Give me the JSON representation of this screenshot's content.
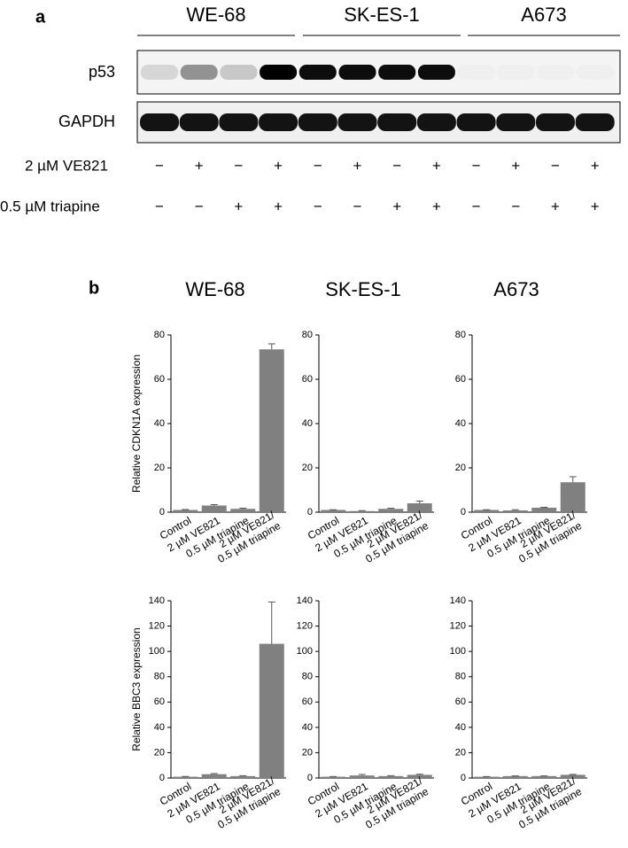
{
  "panel_a": {
    "label": "a",
    "cell_lines": [
      "WE-68",
      "SK-ES-1",
      "A673"
    ],
    "rows": [
      "p53",
      "GAPDH"
    ],
    "treatments": [
      {
        "label": "2 µM VE821",
        "signs": [
          "−",
          "+",
          "−",
          "+",
          "−",
          "+",
          "−",
          "+",
          "−",
          "+",
          "−",
          "+"
        ]
      },
      {
        "label": "0.5 µM triapine",
        "signs": [
          "−",
          "−",
          "+",
          "+",
          "−",
          "−",
          "+",
          "+",
          "−",
          "−",
          "+",
          "+"
        ]
      }
    ]
  },
  "panel_b": {
    "label": "b"
  },
  "chart_data": [
    {
      "type": "bar",
      "title": "WE-68",
      "ylabel": "Relative CDKN1A expression",
      "color": "#808080",
      "categories": [
        "Control",
        "2 µM VE821",
        "0.5 µM triapine",
        "2 µM VE821/\n0.5 µM triapine"
      ],
      "values": [
        1,
        3,
        1.5,
        73.5
      ],
      "errors": [
        0.2,
        0.4,
        0.3,
        2.5
      ],
      "ylim": [
        0,
        80
      ],
      "yticks": [
        0,
        20,
        40,
        60,
        80
      ]
    },
    {
      "type": "bar",
      "title": "SK-ES-1",
      "color": "#808080",
      "categories": [
        "Control",
        "2 µM VE821",
        "0.5 µM triapine",
        "2 µM VE821/\n0.5 µM triapine"
      ],
      "values": [
        1,
        0.5,
        1.5,
        4
      ],
      "errors": [
        0.1,
        0.2,
        0.3,
        1
      ],
      "ylim": [
        0,
        80
      ],
      "yticks": [
        0,
        20,
        40,
        60,
        80
      ]
    },
    {
      "type": "bar",
      "title": "A673",
      "color": "#808080",
      "categories": [
        "Control",
        "2 µM VE821",
        "0.5 µM triapine",
        "2 µM VE821/\n0.5 µM triapine"
      ],
      "values": [
        1,
        0.8,
        2,
        13.5
      ],
      "errors": [
        0.1,
        0.3,
        0.2,
        2.5
      ],
      "ylim": [
        0,
        80
      ],
      "yticks": [
        0,
        20,
        40,
        60,
        80
      ]
    },
    {
      "type": "bar",
      "ylabel": "Relative BBC3 expression",
      "color": "#808080",
      "categories": [
        "Control",
        "2 µM VE821",
        "0.5 µM triapine",
        "2 µM VE821/\n0.5 µM triapine"
      ],
      "values": [
        1,
        3,
        1.5,
        106
      ],
      "errors": [
        0.2,
        0.5,
        0.3,
        33
      ],
      "ylim": [
        0,
        140
      ],
      "yticks": [
        0,
        20,
        40,
        60,
        80,
        100,
        120,
        140
      ]
    },
    {
      "type": "bar",
      "color": "#808080",
      "categories": [
        "Control",
        "2 µM VE821",
        "0.5 µM triapine",
        "2 µM VE821/\n0.5 µM triapine"
      ],
      "values": [
        1,
        2,
        1.5,
        2.5
      ],
      "errors": [
        0.1,
        0.8,
        0.3,
        0.5
      ],
      "ylim": [
        0,
        140
      ],
      "yticks": [
        0,
        20,
        40,
        60,
        80,
        100,
        120,
        140
      ]
    },
    {
      "type": "bar",
      "color": "#808080",
      "categories": [
        "Control",
        "2 µM VE821",
        "0.5 µM triapine",
        "2 µM VE821/\n0.5 µM triapine"
      ],
      "values": [
        1,
        1.5,
        1.5,
        2.5
      ],
      "errors": [
        0.1,
        0.2,
        0.2,
        0.3
      ],
      "ylim": [
        0,
        140
      ],
      "yticks": [
        0,
        20,
        40,
        60,
        80,
        100,
        120,
        140
      ]
    }
  ]
}
